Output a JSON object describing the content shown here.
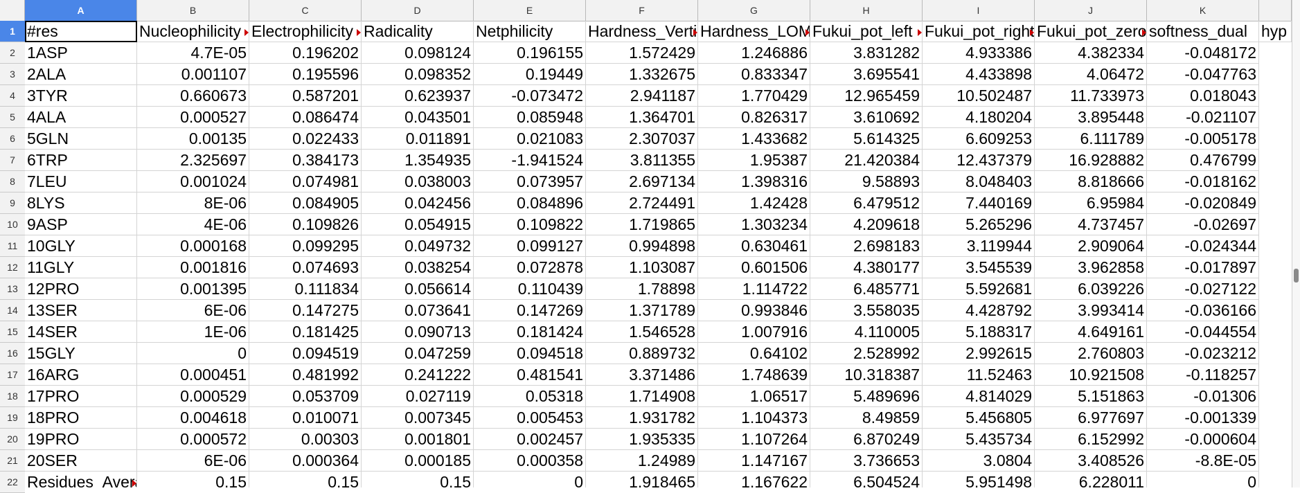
{
  "columns": [
    "A",
    "B",
    "C",
    "D",
    "E",
    "F",
    "G",
    "H",
    "I",
    "J",
    "K",
    ""
  ],
  "rows": [
    "1",
    "2",
    "3",
    "4",
    "5",
    "6",
    "7",
    "8",
    "9",
    "10",
    "11",
    "12",
    "13",
    "14",
    "15",
    "16",
    "17",
    "18",
    "19",
    "20",
    "21",
    "22"
  ],
  "header_cells": [
    "#res",
    "Nucleophilicity",
    "Electrophilicity",
    "Radicality",
    "Netphilicity",
    "Hardness_Vertical",
    "Hardness_LOMO",
    "Fukui_pot_left",
    "Fukui_pot_right",
    "Fukui_pot_zero",
    "softness_dual",
    "hyp"
  ],
  "data_rows": [
    [
      "1ASP",
      "4.7E-05",
      "0.196202",
      "0.098124",
      "0.196155",
      "1.572429",
      "1.246886",
      "3.831282",
      "4.933386",
      "4.382334",
      "-0.048172"
    ],
    [
      "2ALA",
      "0.001107",
      "0.195596",
      "0.098352",
      "0.19449",
      "1.332675",
      "0.833347",
      "3.695541",
      "4.433898",
      "4.06472",
      "-0.047763"
    ],
    [
      "3TYR",
      "0.660673",
      "0.587201",
      "0.623937",
      "-0.073472",
      "2.941187",
      "1.770429",
      "12.965459",
      "10.502487",
      "11.733973",
      "0.018043"
    ],
    [
      "4ALA",
      "0.000527",
      "0.086474",
      "0.043501",
      "0.085948",
      "1.364701",
      "0.826317",
      "3.610692",
      "4.180204",
      "3.895448",
      "-0.021107"
    ],
    [
      "5GLN",
      "0.00135",
      "0.022433",
      "0.011891",
      "0.021083",
      "2.307037",
      "1.433682",
      "5.614325",
      "6.609253",
      "6.111789",
      "-0.005178"
    ],
    [
      "6TRP",
      "2.325697",
      "0.384173",
      "1.354935",
      "-1.941524",
      "3.811355",
      "1.95387",
      "21.420384",
      "12.437379",
      "16.928882",
      "0.476799"
    ],
    [
      "7LEU",
      "0.001024",
      "0.074981",
      "0.038003",
      "0.073957",
      "2.697134",
      "1.398316",
      "9.58893",
      "8.048403",
      "8.818666",
      "-0.018162"
    ],
    [
      "8LYS",
      "8E-06",
      "0.084905",
      "0.042456",
      "0.084896",
      "2.724491",
      "1.42428",
      "6.479512",
      "7.440169",
      "6.95984",
      "-0.020849"
    ],
    [
      "9ASP",
      "4E-06",
      "0.109826",
      "0.054915",
      "0.109822",
      "1.719865",
      "1.303234",
      "4.209618",
      "5.265296",
      "4.737457",
      "-0.02697"
    ],
    [
      "10GLY",
      "0.000168",
      "0.099295",
      "0.049732",
      "0.099127",
      "0.994898",
      "0.630461",
      "2.698183",
      "3.119944",
      "2.909064",
      "-0.024344"
    ],
    [
      "11GLY",
      "0.001816",
      "0.074693",
      "0.038254",
      "0.072878",
      "1.103087",
      "0.601506",
      "4.380177",
      "3.545539",
      "3.962858",
      "-0.017897"
    ],
    [
      "12PRO",
      "0.001395",
      "0.111834",
      "0.056614",
      "0.110439",
      "1.78898",
      "1.114722",
      "6.485771",
      "5.592681",
      "6.039226",
      "-0.027122"
    ],
    [
      "13SER",
      "6E-06",
      "0.147275",
      "0.073641",
      "0.147269",
      "1.371789",
      "0.993846",
      "3.558035",
      "4.428792",
      "3.993414",
      "-0.036166"
    ],
    [
      "14SER",
      "1E-06",
      "0.181425",
      "0.090713",
      "0.181424",
      "1.546528",
      "1.007916",
      "4.110005",
      "5.188317",
      "4.649161",
      "-0.044554"
    ],
    [
      "15GLY",
      "0",
      "0.094519",
      "0.047259",
      "0.094518",
      "0.889732",
      "0.64102",
      "2.528992",
      "2.992615",
      "2.760803",
      "-0.023212"
    ],
    [
      "16ARG",
      "0.000451",
      "0.481992",
      "0.241222",
      "0.481541",
      "3.371486",
      "1.748639",
      "10.318387",
      "11.52463",
      "10.921508",
      "-0.118257"
    ],
    [
      "17PRO",
      "0.000529",
      "0.053709",
      "0.027119",
      "0.05318",
      "1.714908",
      "1.06517",
      "5.489696",
      "4.814029",
      "5.151863",
      "-0.01306"
    ],
    [
      "18PRO",
      "0.004618",
      "0.010071",
      "0.007345",
      "0.005453",
      "1.931782",
      "1.104373",
      "8.49859",
      "5.456805",
      "6.977697",
      "-0.001339"
    ],
    [
      "19PRO",
      "0.000572",
      "0.00303",
      "0.001801",
      "0.002457",
      "1.935335",
      "1.107264",
      "6.870249",
      "5.435734",
      "6.152992",
      "-0.000604"
    ],
    [
      "20SER",
      "6E-06",
      "0.000364",
      "0.000185",
      "0.000358",
      "1.24989",
      "1.147167",
      "3.736653",
      "3.0804",
      "3.408526",
      "-8.8E-05"
    ],
    [
      "Residues_Average",
      "0.15",
      "0.15",
      "0.15",
      "0",
      "1.918465",
      "1.167622",
      "6.504524",
      "5.951498",
      "6.228011",
      "0"
    ]
  ]
}
